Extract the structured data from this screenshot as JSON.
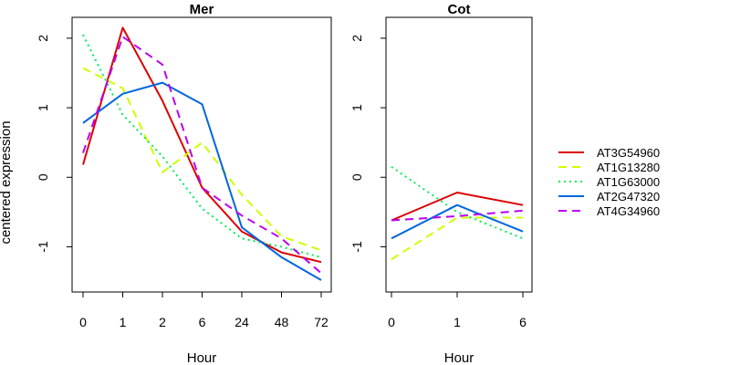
{
  "chart_data": {
    "type": "line",
    "ylabel": "centered expression",
    "legend_position": "right",
    "legend": [
      {
        "name": "AT3G54960",
        "color": "#DD0000",
        "dash": "solid"
      },
      {
        "name": "AT1G13280",
        "color": "#CCFF00",
        "dash": "dashed"
      },
      {
        "name": "AT1G63000",
        "color": "#00EE55",
        "dash": "dotted"
      },
      {
        "name": "AT2G47320",
        "color": "#0066DD",
        "dash": "solid"
      },
      {
        "name": "AT4G34960",
        "color": "#BB00EE",
        "dash": "dashed"
      }
    ],
    "panels": [
      {
        "title": "Mer",
        "xlabel": "Hour",
        "categories": [
          "0",
          "1",
          "2",
          "6",
          "24",
          "48",
          "72"
        ],
        "yticks": [
          "-1",
          "0",
          "1",
          "2"
        ],
        "ylim": [
          -1.65,
          2.3
        ],
        "series": [
          {
            "name": "AT3G54960",
            "values": [
              0.18,
              2.15,
              1.1,
              -0.15,
              -0.78,
              -1.08,
              -1.22
            ]
          },
          {
            "name": "AT1G13280",
            "values": [
              1.57,
              1.28,
              0.07,
              0.5,
              -0.25,
              -0.85,
              -1.05
            ]
          },
          {
            "name": "AT1G63000",
            "values": [
              2.05,
              0.9,
              0.3,
              -0.45,
              -0.88,
              -1.0,
              -1.15
            ]
          },
          {
            "name": "AT2G47320",
            "values": [
              0.78,
              1.2,
              1.36,
              1.05,
              -0.72,
              -1.15,
              -1.48
            ]
          },
          {
            "name": "AT4G34960",
            "values": [
              0.35,
              2.02,
              1.62,
              -0.15,
              -0.55,
              -0.88,
              -1.38
            ]
          }
        ]
      },
      {
        "title": "Cot",
        "xlabel": "Hour",
        "categories": [
          "0",
          "1",
          "6"
        ],
        "yticks": [
          "-1",
          "0",
          "1",
          "2"
        ],
        "ylim": [
          -1.65,
          2.3
        ],
        "series": [
          {
            "name": "AT3G54960",
            "values": [
              -0.62,
              -0.22,
              -0.4
            ]
          },
          {
            "name": "AT1G13280",
            "values": [
              -1.18,
              -0.58,
              -0.58
            ]
          },
          {
            "name": "AT1G63000",
            "values": [
              0.15,
              -0.5,
              -0.88
            ]
          },
          {
            "name": "AT2G47320",
            "values": [
              -0.88,
              -0.4,
              -0.78
            ]
          },
          {
            "name": "AT4G34960",
            "values": [
              -0.62,
              -0.56,
              -0.48
            ]
          }
        ]
      }
    ]
  }
}
